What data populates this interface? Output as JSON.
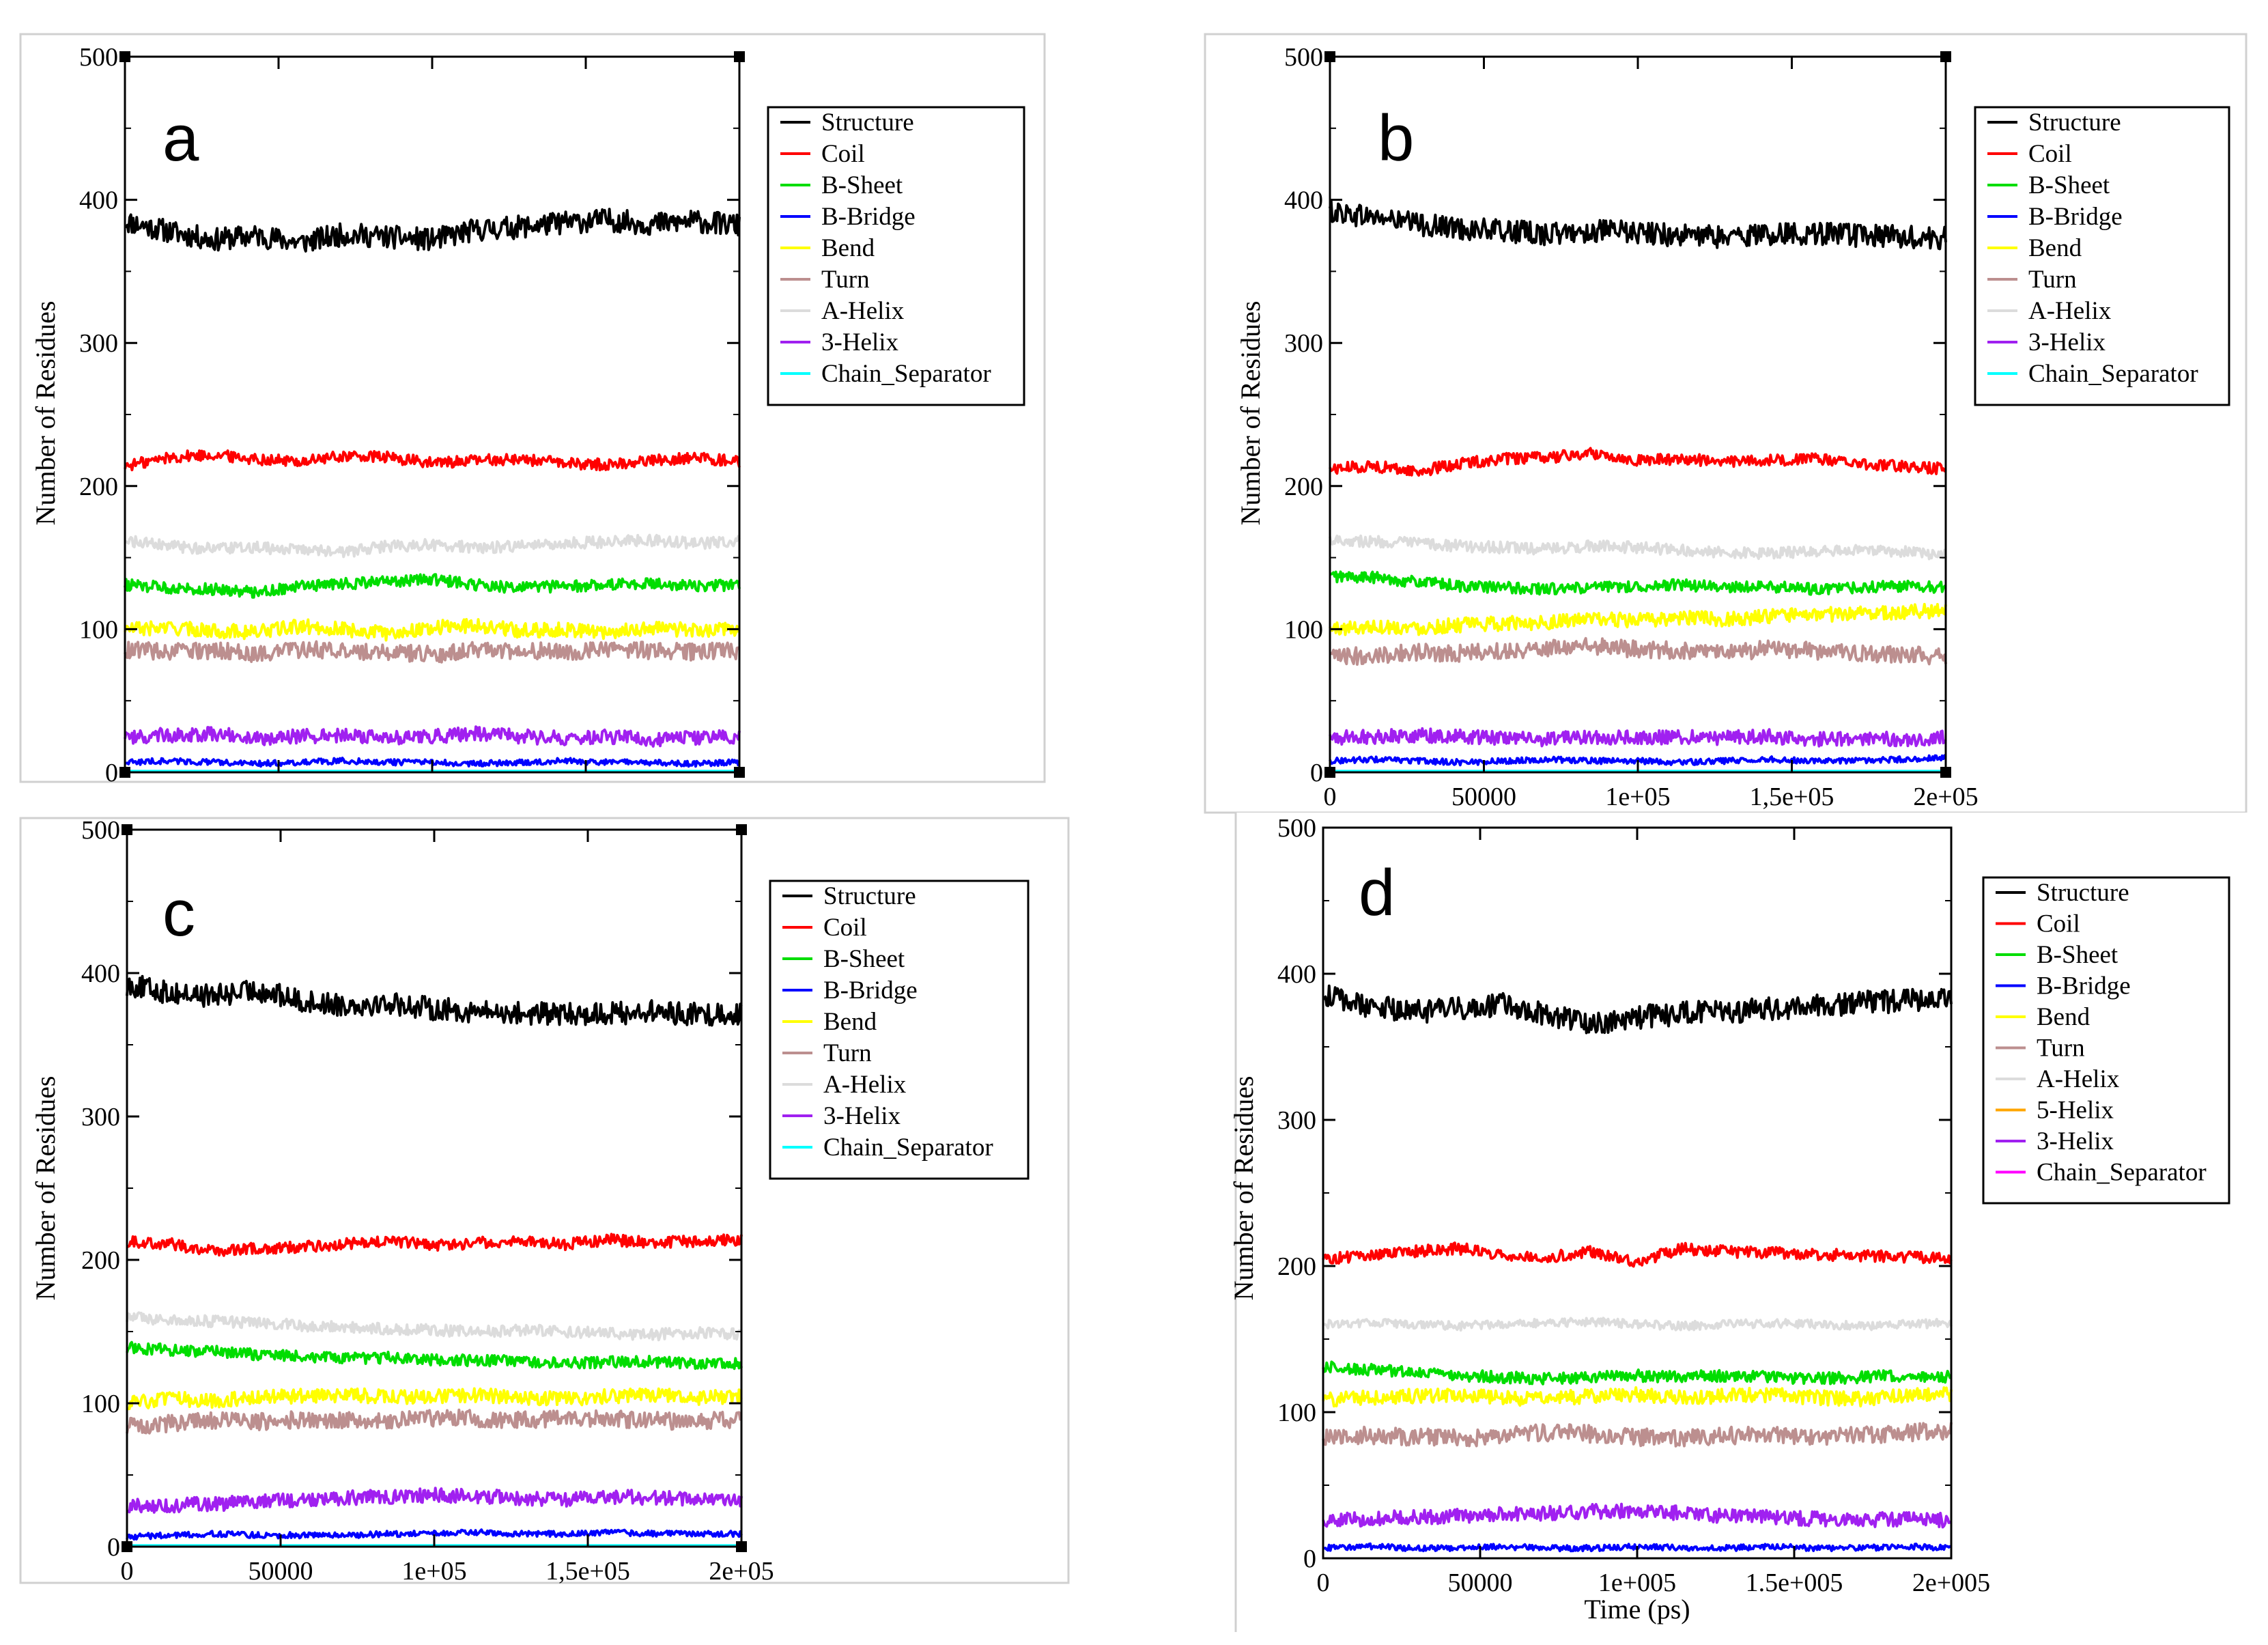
{
  "figure": {
    "description_note": "Four DSSP secondary-structure time-series panels"
  },
  "chart_data": [
    {
      "type": "line",
      "panel_label": "a",
      "ylabel": "Number of Residues",
      "xlabel": "",
      "ylim": [
        0,
        500
      ],
      "yticks": [
        "0",
        "100",
        "200",
        "300",
        "400",
        "500"
      ],
      "xlim": [
        0,
        200000
      ],
      "xticks": [],
      "series": [
        {
          "name": "Structure",
          "color": "#000000",
          "mean": 380,
          "noise": 8,
          "values": [
            385,
            378,
            372,
            375,
            370,
            376,
            374,
            372,
            379,
            381,
            384,
            386,
            383,
            385,
            382
          ]
        },
        {
          "name": "Coil",
          "color": "#ff0000",
          "mean": 218,
          "noise": 4,
          "values": [
            214,
            220,
            222,
            219,
            217,
            221,
            220,
            216,
            218,
            219,
            216,
            215,
            218,
            220,
            217
          ]
        },
        {
          "name": "B-Sheet",
          "color": "#00dd00",
          "mean": 130,
          "noise": 4,
          "values": [
            131,
            129,
            128,
            126,
            130,
            132,
            133,
            135,
            131,
            129,
            130,
            131,
            132,
            130,
            131
          ]
        },
        {
          "name": "B-Bridge",
          "color": "#0000ff",
          "mean": 7,
          "noise": 2,
          "values": [
            7,
            8,
            7,
            6,
            7,
            8,
            7,
            7,
            6,
            7,
            8,
            7,
            7,
            6,
            7
          ]
        },
        {
          "name": "Bend",
          "color": "#ffff00",
          "mean": 100,
          "noise": 5,
          "values": [
            100,
            101,
            99,
            98,
            102,
            100,
            97,
            101,
            103,
            99,
            100,
            98,
            101,
            99,
            100
          ]
        },
        {
          "name": "Turn",
          "color": "#bc8f8f",
          "mean": 85,
          "noise": 6,
          "values": [
            86,
            84,
            85,
            83,
            86,
            85,
            84,
            82,
            86,
            85,
            84,
            86,
            85,
            84,
            85
          ]
        },
        {
          "name": "A-Helix",
          "color": "#dcdcdc",
          "mean": 158,
          "noise": 4,
          "values": [
            162,
            158,
            156,
            157,
            155,
            154,
            158,
            159,
            157,
            158,
            160,
            161,
            162,
            160,
            161
          ]
        },
        {
          "name": "3-Helix",
          "color": "#a020f0",
          "mean": 25,
          "noise": 5,
          "values": [
            25,
            26,
            27,
            24,
            25,
            26,
            24,
            25,
            27,
            25,
            24,
            25,
            23,
            24,
            25
          ]
        },
        {
          "name": "Chain_Separator",
          "color": "#00ffff",
          "mean": 1,
          "noise": 0,
          "values": [
            1,
            1,
            1,
            1,
            1,
            1,
            1,
            1,
            1,
            1,
            1,
            1,
            1,
            1,
            1
          ]
        }
      ]
    },
    {
      "type": "line",
      "panel_label": "b",
      "ylabel": "Number of Residues",
      "xlabel": "",
      "ylim": [
        0,
        500
      ],
      "yticks": [
        "0",
        "100",
        "200",
        "300",
        "400",
        "500"
      ],
      "xlim": [
        0,
        200000
      ],
      "xticks": [
        "0",
        "50000",
        "1e+05",
        "1,5e+05",
        "2e+05"
      ],
      "series": [
        {
          "name": "Structure",
          "color": "#000000",
          "mean": 378,
          "noise": 8,
          "values": [
            392,
            388,
            383,
            380,
            378,
            376,
            378,
            377,
            375,
            374,
            376,
            377,
            375,
            374,
            373
          ]
        },
        {
          "name": "Coil",
          "color": "#ff0000",
          "mean": 215,
          "noise": 4,
          "values": [
            212,
            214,
            210,
            216,
            219,
            220,
            223,
            218,
            219,
            217,
            218,
            219,
            216,
            214,
            212
          ]
        },
        {
          "name": "B-Sheet",
          "color": "#00dd00",
          "mean": 130,
          "noise": 4,
          "values": [
            137,
            136,
            133,
            130,
            129,
            128,
            129,
            130,
            131,
            129,
            130,
            128,
            129,
            130,
            129
          ]
        },
        {
          "name": "B-Bridge",
          "color": "#0000ff",
          "mean": 8,
          "noise": 2,
          "values": [
            8,
            9,
            8,
            7,
            8,
            9,
            8,
            8,
            7,
            8,
            9,
            8,
            8,
            9,
            10
          ]
        },
        {
          "name": "Bend",
          "color": "#ffff00",
          "mean": 105,
          "noise": 5,
          "values": [
            100,
            102,
            101,
            103,
            104,
            105,
            107,
            106,
            108,
            107,
            109,
            110,
            111,
            112,
            113
          ]
        },
        {
          "name": "Turn",
          "color": "#bc8f8f",
          "mean": 85,
          "noise": 6,
          "values": [
            80,
            82,
            84,
            83,
            85,
            87,
            88,
            86,
            85,
            84,
            86,
            85,
            83,
            82,
            81
          ]
        },
        {
          "name": "A-Helix",
          "color": "#dcdcdc",
          "mean": 157,
          "noise": 4,
          "values": [
            163,
            161,
            160,
            158,
            157,
            156,
            158,
            157,
            155,
            154,
            153,
            154,
            155,
            154,
            152
          ]
        },
        {
          "name": "3-Helix",
          "color": "#a020f0",
          "mean": 24,
          "noise": 5,
          "values": [
            24,
            25,
            26,
            25,
            24,
            23,
            25,
            24,
            25,
            24,
            25,
            23,
            24,
            23,
            24
          ]
        },
        {
          "name": "Chain_Separator",
          "color": "#00ffff",
          "mean": 1,
          "noise": 0,
          "values": [
            1,
            1,
            1,
            1,
            1,
            1,
            1,
            1,
            1,
            1,
            1,
            1,
            1,
            1,
            1
          ]
        }
      ]
    },
    {
      "type": "line",
      "panel_label": "c",
      "ylabel": "Number of Residues",
      "xlabel": "",
      "ylim": [
        0,
        500
      ],
      "yticks": [
        "0",
        "100",
        "200",
        "300",
        "400",
        "500"
      ],
      "xlim": [
        0,
        200000
      ],
      "xticks": [
        "0",
        "50000",
        "1e+05",
        "1,5e+05",
        "2e+05"
      ],
      "series": [
        {
          "name": "Structure",
          "color": "#000000",
          "mean": 375,
          "noise": 8,
          "values": [
            392,
            386,
            384,
            388,
            380,
            378,
            379,
            375,
            373,
            372,
            371,
            372,
            373,
            371,
            372
          ]
        },
        {
          "name": "Coil",
          "color": "#ff0000",
          "mean": 212,
          "noise": 4,
          "values": [
            213,
            211,
            206,
            208,
            209,
            211,
            213,
            210,
            212,
            213,
            211,
            214,
            212,
            213,
            214
          ]
        },
        {
          "name": "B-Sheet",
          "color": "#00dd00",
          "mean": 132,
          "noise": 4,
          "values": [
            139,
            137,
            136,
            134,
            133,
            131,
            132,
            130,
            130,
            129,
            128,
            129,
            129,
            128,
            128
          ]
        },
        {
          "name": "B-Bridge",
          "color": "#0000ff",
          "mean": 8,
          "noise": 2,
          "values": [
            7,
            8,
            9,
            8,
            8,
            8,
            9,
            9,
            10,
            9,
            9,
            10,
            9,
            9,
            9
          ]
        },
        {
          "name": "Bend",
          "color": "#ffff00",
          "mean": 105,
          "noise": 5,
          "values": [
            100,
            103,
            102,
            104,
            105,
            106,
            104,
            105,
            106,
            104,
            103,
            105,
            106,
            104,
            105
          ]
        },
        {
          "name": "Turn",
          "color": "#bc8f8f",
          "mean": 88,
          "noise": 6,
          "values": [
            84,
            86,
            88,
            87,
            89,
            88,
            87,
            90,
            89,
            88,
            90,
            89,
            88,
            87,
            89
          ]
        },
        {
          "name": "A-Helix",
          "color": "#dcdcdc",
          "mean": 152,
          "noise": 4,
          "values": [
            160,
            158,
            157,
            156,
            154,
            153,
            152,
            151,
            150,
            151,
            150,
            149,
            148,
            149,
            148
          ]
        },
        {
          "name": "3-Helix",
          "color": "#a020f0",
          "mean": 32,
          "noise": 5,
          "values": [
            28,
            29,
            30,
            31,
            33,
            34,
            35,
            36,
            35,
            34,
            33,
            35,
            34,
            33,
            32
          ]
        },
        {
          "name": "Chain_Separator",
          "color": "#00ffff",
          "mean": 1,
          "noise": 0,
          "values": [
            1,
            1,
            1,
            1,
            1,
            1,
            1,
            1,
            1,
            1,
            1,
            1,
            1,
            1,
            1
          ]
        }
      ]
    },
    {
      "type": "line",
      "panel_label": "d",
      "ylabel": "Number of Residues",
      "xlabel": "Time (ps)",
      "ylim": [
        0,
        500
      ],
      "yticks": [
        "0",
        "100",
        "200",
        "300",
        "400",
        "500"
      ],
      "xlim": [
        0,
        200000
      ],
      "xticks": [
        "0",
        "50000",
        "1e+005",
        "1.5e+005",
        "2e+005"
      ],
      "series": [
        {
          "name": "Structure",
          "color": "#000000",
          "mean": 377,
          "noise": 8,
          "values": [
            385,
            378,
            374,
            376,
            379,
            372,
            366,
            370,
            373,
            374,
            376,
            378,
            380,
            382,
            383
          ]
        },
        {
          "name": "Coil",
          "color": "#ff0000",
          "mean": 208,
          "noise": 4,
          "values": [
            205,
            207,
            210,
            212,
            208,
            206,
            210,
            203,
            212,
            210,
            209,
            208,
            207,
            206,
            205
          ]
        },
        {
          "name": "B-Sheet",
          "color": "#00dd00",
          "mean": 125,
          "noise": 4,
          "values": [
            131,
            129,
            127,
            125,
            124,
            123,
            124,
            125,
            124,
            125,
            124,
            123,
            124,
            125,
            124
          ]
        },
        {
          "name": "B-Bridge",
          "color": "#0000ff",
          "mean": 7,
          "noise": 2,
          "values": [
            7,
            8,
            7,
            7,
            8,
            7,
            7,
            8,
            7,
            7,
            8,
            7,
            7,
            8,
            7
          ]
        },
        {
          "name": "Bend",
          "color": "#ffff00",
          "mean": 110,
          "noise": 5,
          "values": [
            108,
            110,
            111,
            112,
            110,
            109,
            111,
            112,
            110,
            111,
            112,
            110,
            109,
            111,
            112
          ]
        },
        {
          "name": "Turn",
          "color": "#bc8f8f",
          "mean": 83,
          "noise": 6,
          "values": [
            82,
            84,
            83,
            82,
            84,
            86,
            85,
            83,
            82,
            84,
            85,
            83,
            84,
            86,
            87
          ]
        },
        {
          "name": "A-Helix",
          "color": "#dcdcdc",
          "mean": 160,
          "noise": 3,
          "values": [
            160,
            161,
            160,
            159,
            160,
            161,
            162,
            160,
            159,
            160,
            161,
            160,
            159,
            160,
            161
          ]
        },
        {
          "name": "5-Helix",
          "color": "#ffa500",
          "mean": 0,
          "noise": 0,
          "values": [
            0,
            0,
            0,
            0,
            0,
            0,
            0,
            0,
            0,
            0,
            0,
            0,
            0,
            0,
            0
          ]
        },
        {
          "name": "3-Helix",
          "color": "#a020f0",
          "mean": 28,
          "noise": 5,
          "values": [
            26,
            27,
            28,
            29,
            30,
            31,
            32,
            33,
            31,
            29,
            28,
            27,
            26,
            27,
            26
          ]
        },
        {
          "name": "Chain_Separator",
          "color": "#ff00ff",
          "mean": 0,
          "noise": 0,
          "values": [
            0,
            0,
            0,
            0,
            0,
            0,
            0,
            0,
            0,
            0,
            0,
            0,
            0,
            0,
            0
          ]
        }
      ]
    }
  ]
}
